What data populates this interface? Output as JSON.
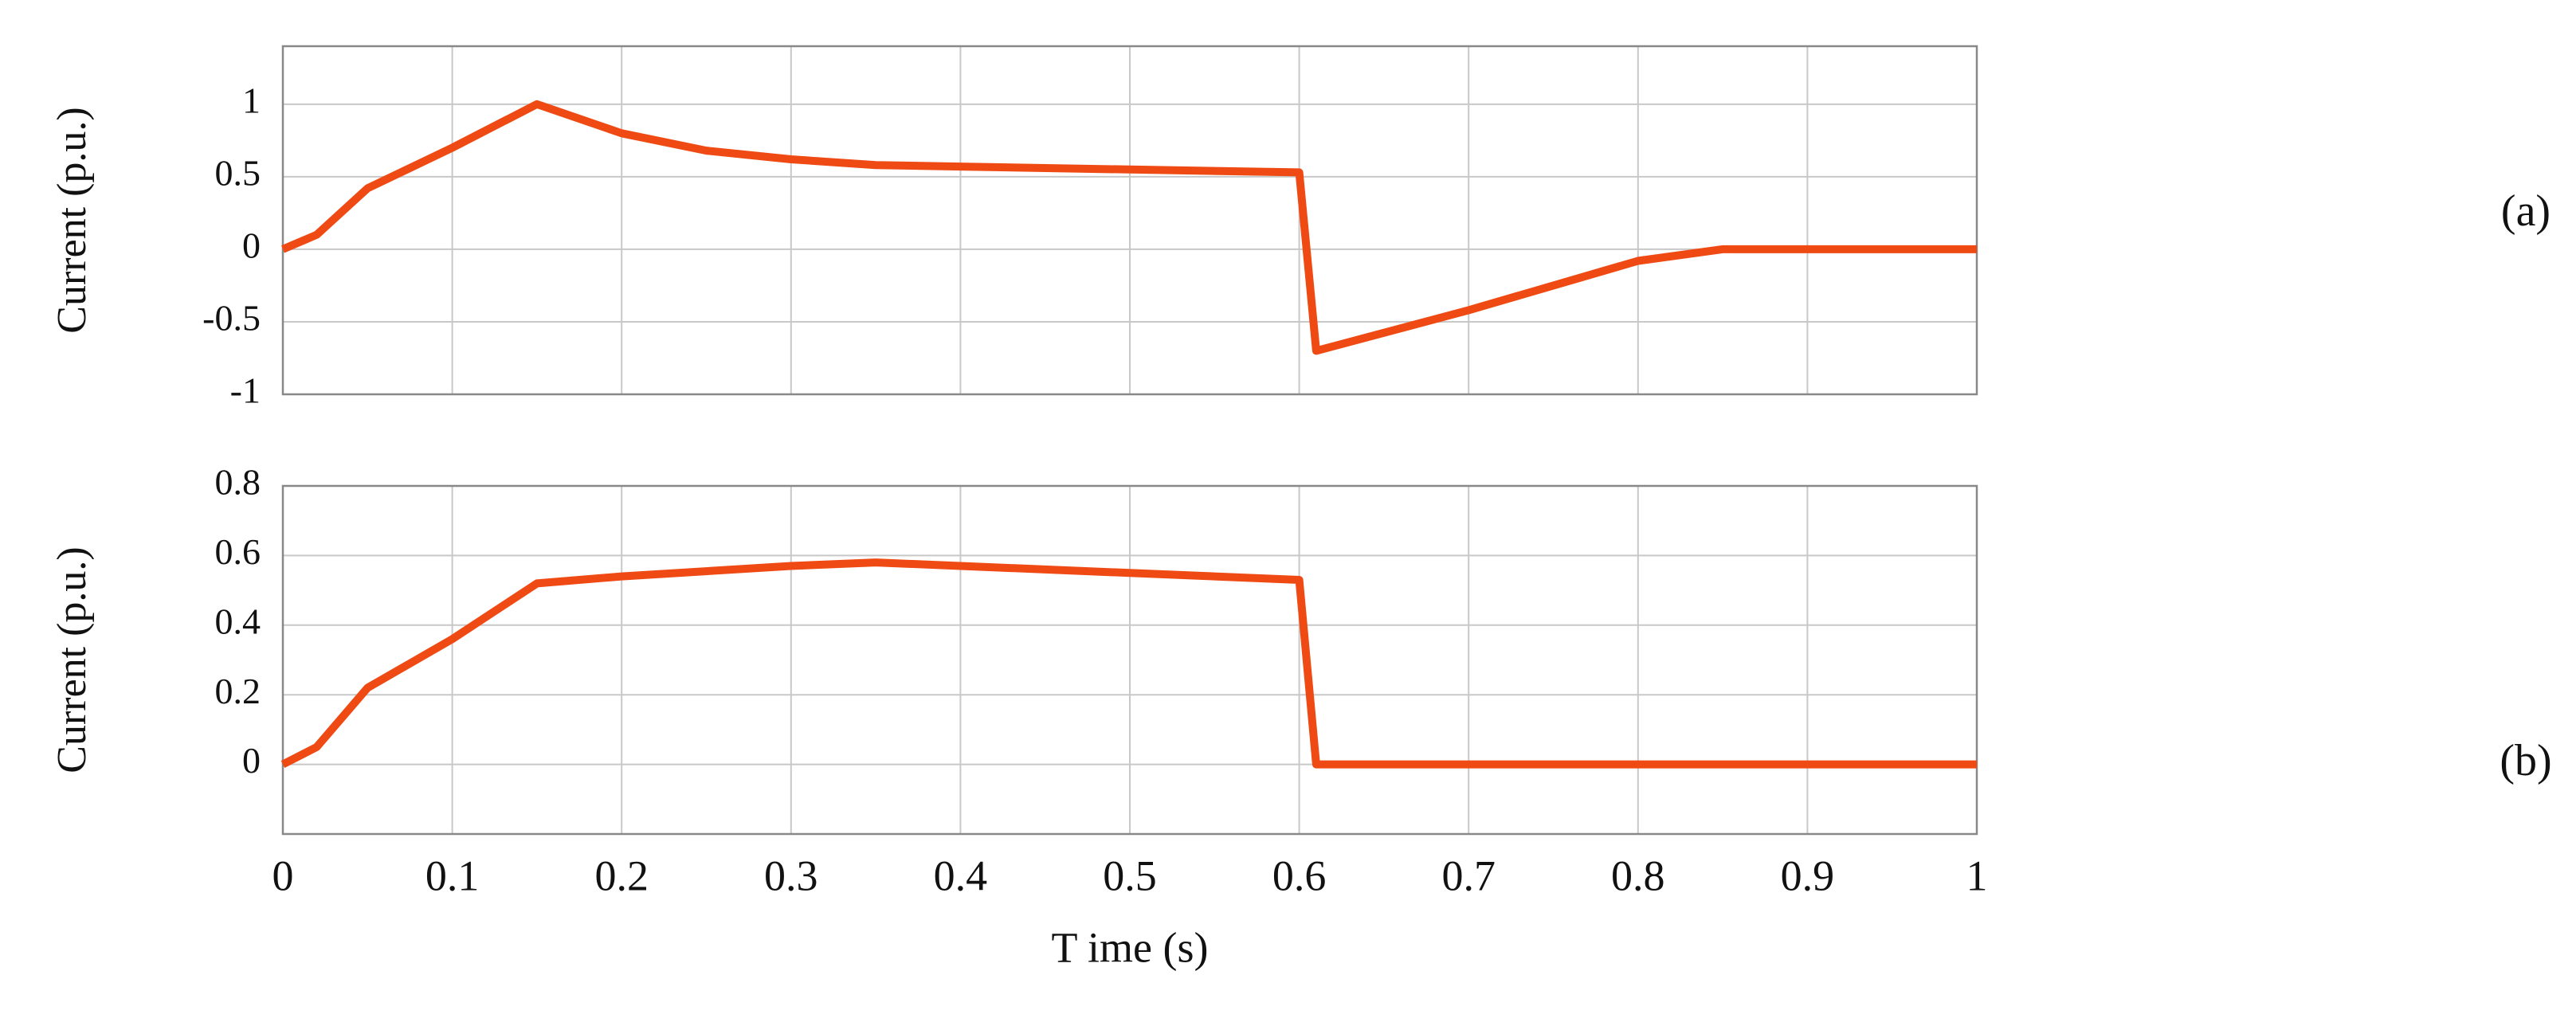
{
  "chart_data": [
    {
      "type": "line",
      "panel_label": "(a)",
      "ylabel": "Current (p.u.)",
      "xlim": [
        0,
        1
      ],
      "xticks": [
        0,
        0.1,
        0.2,
        0.3,
        0.4,
        0.5,
        0.6,
        0.7,
        0.8,
        0.9,
        1
      ],
      "show_xticklabels": false,
      "ylim": [
        -1,
        1.4
      ],
      "yticks": [
        -1,
        -0.5,
        0,
        0.5,
        1
      ],
      "grid": true,
      "x": [
        0,
        0.02,
        0.05,
        0.1,
        0.15,
        0.2,
        0.25,
        0.3,
        0.35,
        0.4,
        0.5,
        0.6,
        0.61,
        0.7,
        0.8,
        0.85,
        0.9,
        1
      ],
      "series": [
        {
          "color": "#f04a14",
          "values": [
            0,
            0.1,
            0.42,
            0.7,
            1.0,
            0.8,
            0.68,
            0.62,
            0.58,
            0.57,
            0.55,
            0.53,
            -0.7,
            -0.42,
            -0.08,
            0,
            0,
            0
          ]
        }
      ]
    },
    {
      "type": "line",
      "panel_label": "(b)",
      "ylabel": "Current (p.u.)",
      "xlabel": "T ime (s)",
      "xlim": [
        0,
        1
      ],
      "xticks": [
        0,
        0.1,
        0.2,
        0.3,
        0.4,
        0.5,
        0.6,
        0.7,
        0.8,
        0.9,
        1
      ],
      "show_xticklabels": true,
      "ylim": [
        -0.2,
        0.8
      ],
      "yticks": [
        0,
        0.2,
        0.4,
        0.6,
        0.8
      ],
      "grid": true,
      "x": [
        0,
        0.02,
        0.05,
        0.1,
        0.15,
        0.2,
        0.3,
        0.35,
        0.4,
        0.5,
        0.6,
        0.61,
        0.7,
        0.8,
        0.9,
        1
      ],
      "series": [
        {
          "color": "#f04a14",
          "values": [
            0,
            0.05,
            0.22,
            0.36,
            0.52,
            0.54,
            0.57,
            0.58,
            0.57,
            0.55,
            0.53,
            0,
            0,
            0,
            0,
            0
          ]
        }
      ]
    }
  ]
}
